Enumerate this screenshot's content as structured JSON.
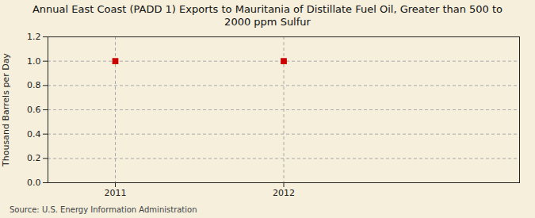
{
  "chart_data": {
    "type": "scatter",
    "title": "Annual East Coast (PADD 1) Exports to Mauritania of Distillate Fuel Oil, Greater than 500 to\n2000 ppm Sulfur",
    "ylabel": "Thousand Barrels per Day",
    "source": "Source: U.S. Energy Information Administration",
    "x": [
      2011,
      2012
    ],
    "values": [
      1.0,
      1.0
    ],
    "color": "#cc0000",
    "marker": "square",
    "xlim": [
      2010.6,
      2013.4
    ],
    "ylim": [
      0.0,
      1.2
    ],
    "xticks": [
      2011,
      2012
    ],
    "yticks": [
      {
        "value": 0.0,
        "label": "0.0"
      },
      0.2,
      0.4,
      0.6,
      0.8,
      {
        "value": 1.0,
        "label": "1.0"
      },
      1.2
    ],
    "grid": true
  }
}
